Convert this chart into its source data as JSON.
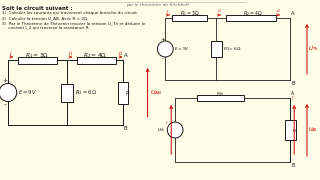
{
  "bg_color": "#FDFDE8",
  "cc": "#1a1a1a",
  "rc": "#cc0000",
  "title": "Soit le circuit suivant :",
  "q1": "1)  Calculer les courants qui traversent chaque branche du circuit.",
  "q2": "2)  Calculer la tension U_AB. Avec R = 2Ω.",
  "q3": "3)  Par le Théorème de Thévenin trouver la tension U_Th et déduire le",
  "q4": "     courant I_2 qui traverse la résistance R.",
  "top_note": "par le théorème de Kirchhoff"
}
